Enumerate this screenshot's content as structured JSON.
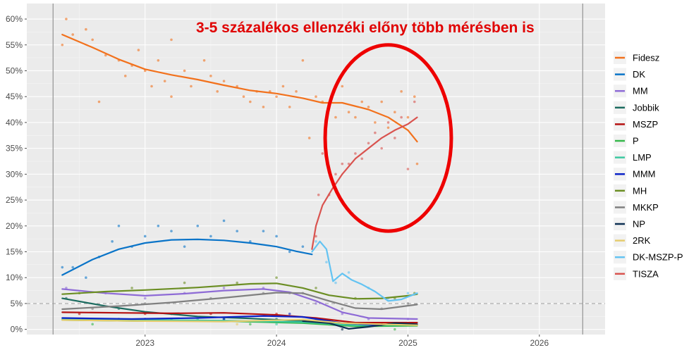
{
  "chart_data": {
    "type": "scatter",
    "title": "",
    "xlabel": "",
    "ylabel": "",
    "x_ticks": [
      "2023",
      "2024",
      "2025",
      "2026"
    ],
    "x_tick_years": [
      2023,
      2024,
      2025,
      2026
    ],
    "x_range": [
      2022.1,
      2026.5
    ],
    "y_ticks": [
      "0%",
      "5%",
      "10%",
      "15%",
      "20%",
      "25%",
      "30%",
      "35%",
      "40%",
      "45%",
      "50%",
      "55%",
      "60%"
    ],
    "y_tick_values": [
      0,
      5,
      10,
      15,
      20,
      25,
      30,
      35,
      40,
      45,
      50,
      55,
      60
    ],
    "ylim": [
      -1,
      63
    ],
    "grid": true,
    "legend_placement": "right",
    "reference_line": 5,
    "vertical_lines": [
      2022.3,
      2026.33
    ],
    "annotation": "3-5 százalékos ellenzéki előny több mérésben is",
    "highlight_ellipse": {
      "cx": 2024.85,
      "cy": 37,
      "rx": 0.48,
      "ry": 18
    },
    "series": [
      {
        "name": "Fidesz",
        "color": "#f2711c",
        "trend": [
          [
            2022.37,
            57
          ],
          [
            2022.6,
            54.5
          ],
          [
            2022.8,
            52.2
          ],
          [
            2023.0,
            50.3
          ],
          [
            2023.2,
            49.2
          ],
          [
            2023.4,
            48.3
          ],
          [
            2023.6,
            47.2
          ],
          [
            2023.8,
            46.2
          ],
          [
            2024.0,
            45.6
          ],
          [
            2024.2,
            44.7
          ],
          [
            2024.35,
            43.8
          ],
          [
            2024.5,
            43.8
          ],
          [
            2024.7,
            42.5
          ],
          [
            2024.85,
            41
          ],
          [
            2025.0,
            38.5
          ],
          [
            2025.07,
            36.3
          ]
        ],
        "points": [
          [
            2022.37,
            55
          ],
          [
            2022.4,
            60
          ],
          [
            2022.45,
            57
          ],
          [
            2022.55,
            58
          ],
          [
            2022.6,
            56
          ],
          [
            2022.65,
            44
          ],
          [
            2022.7,
            53
          ],
          [
            2022.8,
            52
          ],
          [
            2022.85,
            49
          ],
          [
            2022.9,
            51
          ],
          [
            2022.95,
            54
          ],
          [
            2023.0,
            50
          ],
          [
            2023.05,
            47
          ],
          [
            2023.1,
            52
          ],
          [
            2023.15,
            48
          ],
          [
            2023.2,
            56
          ],
          [
            2023.2,
            45
          ],
          [
            2023.3,
            50
          ],
          [
            2023.35,
            47
          ],
          [
            2023.45,
            52
          ],
          [
            2023.5,
            49
          ],
          [
            2023.55,
            46
          ],
          [
            2023.6,
            48
          ],
          [
            2023.7,
            47
          ],
          [
            2023.75,
            45
          ],
          [
            2023.8,
            44
          ],
          [
            2023.85,
            46
          ],
          [
            2023.9,
            43
          ],
          [
            2023.95,
            46
          ],
          [
            2024.0,
            45
          ],
          [
            2024.05,
            47
          ],
          [
            2024.1,
            43
          ],
          [
            2024.15,
            46
          ],
          [
            2024.2,
            52
          ],
          [
            2024.25,
            37
          ],
          [
            2024.3,
            45
          ],
          [
            2024.35,
            44
          ],
          [
            2024.4,
            43
          ],
          [
            2024.45,
            41
          ],
          [
            2024.5,
            47
          ],
          [
            2024.55,
            42
          ],
          [
            2024.6,
            41
          ],
          [
            2024.65,
            44
          ],
          [
            2024.7,
            43
          ],
          [
            2024.75,
            40
          ],
          [
            2024.8,
            44
          ],
          [
            2024.85,
            39
          ],
          [
            2024.9,
            42
          ],
          [
            2024.95,
            46
          ],
          [
            2025.0,
            41
          ],
          [
            2025.05,
            45
          ],
          [
            2025.07,
            32
          ]
        ]
      },
      {
        "name": "DK",
        "color": "#0a74c8",
        "trend": [
          [
            2022.37,
            10.5
          ],
          [
            2022.6,
            13.5
          ],
          [
            2022.8,
            15.5
          ],
          [
            2023.0,
            16.7
          ],
          [
            2023.2,
            17.3
          ],
          [
            2023.4,
            17.4
          ],
          [
            2023.6,
            17.2
          ],
          [
            2023.8,
            16.7
          ],
          [
            2024.0,
            16
          ],
          [
            2024.15,
            15.1
          ],
          [
            2024.27,
            14.5
          ]
        ],
        "points": [
          [
            2022.37,
            12
          ],
          [
            2022.45,
            12
          ],
          [
            2022.55,
            10
          ],
          [
            2022.65,
            14
          ],
          [
            2022.75,
            17
          ],
          [
            2022.8,
            20
          ],
          [
            2022.9,
            16
          ],
          [
            2023.0,
            18
          ],
          [
            2023.1,
            20
          ],
          [
            2023.2,
            19
          ],
          [
            2023.3,
            16
          ],
          [
            2023.4,
            20
          ],
          [
            2023.5,
            18
          ],
          [
            2023.6,
            21
          ],
          [
            2023.7,
            19
          ],
          [
            2023.8,
            17
          ],
          [
            2023.9,
            19
          ],
          [
            2024.0,
            18
          ],
          [
            2024.1,
            15
          ],
          [
            2024.2,
            16
          ]
        ]
      },
      {
        "name": "MM",
        "color": "#8e6bd6",
        "trend": [
          [
            2022.37,
            7.8
          ],
          [
            2022.7,
            7
          ],
          [
            2023.0,
            6.5
          ],
          [
            2023.3,
            6.9
          ],
          [
            2023.6,
            7.5
          ],
          [
            2023.9,
            7.8
          ],
          [
            2024.1,
            7.2
          ],
          [
            2024.3,
            5.5
          ],
          [
            2024.5,
            3.3
          ],
          [
            2024.7,
            2.2
          ],
          [
            2025.07,
            2
          ]
        ],
        "points": [
          [
            2022.4,
            8
          ],
          [
            2022.7,
            7
          ],
          [
            2023.0,
            6
          ],
          [
            2023.3,
            7
          ],
          [
            2023.6,
            8
          ],
          [
            2023.9,
            8
          ],
          [
            2024.1,
            7
          ],
          [
            2024.3,
            5
          ],
          [
            2024.5,
            3
          ],
          [
            2024.7,
            2
          ],
          [
            2025.0,
            2
          ]
        ]
      },
      {
        "name": "Jobbik",
        "color": "#1b6b5f",
        "trend": [
          [
            2022.37,
            6
          ],
          [
            2022.7,
            4.5
          ],
          [
            2023.0,
            3.4
          ],
          [
            2023.4,
            2.5
          ],
          [
            2023.8,
            2.1
          ],
          [
            2024.2,
            1.6
          ],
          [
            2024.6,
            1
          ],
          [
            2025.07,
            0.8
          ]
        ],
        "points": [
          [
            2022.4,
            6
          ],
          [
            2022.8,
            4
          ],
          [
            2023.2,
            3
          ],
          [
            2023.6,
            2
          ],
          [
            2024.0,
            2
          ],
          [
            2024.4,
            1
          ]
        ]
      },
      {
        "name": "MSZP",
        "color": "#b51010",
        "trend": [
          [
            2022.37,
            3.3
          ],
          [
            2022.8,
            3.2
          ],
          [
            2023.2,
            3.1
          ],
          [
            2023.6,
            3.2
          ],
          [
            2024.0,
            2.8
          ],
          [
            2024.3,
            2.2
          ],
          [
            2024.6,
            1.3
          ],
          [
            2025.07,
            1.3
          ]
        ],
        "points": [
          [
            2022.5,
            3
          ],
          [
            2023.0,
            3
          ],
          [
            2023.5,
            3
          ],
          [
            2024.0,
            3
          ],
          [
            2024.5,
            1
          ]
        ]
      },
      {
        "name": "P",
        "color": "#35b74a",
        "trend": [
          [
            2022.37,
            1.8
          ],
          [
            2023.0,
            1.6
          ],
          [
            2023.6,
            1.6
          ],
          [
            2024.2,
            1.2
          ],
          [
            2024.6,
            0.6
          ],
          [
            2025.07,
            0.7
          ]
        ],
        "points": [
          [
            2022.6,
            1
          ],
          [
            2023.2,
            2
          ],
          [
            2023.8,
            1
          ],
          [
            2024.4,
            1
          ],
          [
            2024.9,
            0
          ]
        ]
      },
      {
        "name": "LMP",
        "color": "#3cc8a0",
        "trend": [
          [
            2022.37,
            2
          ],
          [
            2023.0,
            1.8
          ],
          [
            2023.6,
            1.7
          ],
          [
            2024.2,
            1.4
          ],
          [
            2024.6,
            0.8
          ],
          [
            2025.07,
            0.9
          ]
        ],
        "points": [
          [
            2022.8,
            2
          ],
          [
            2023.4,
            2
          ],
          [
            2024.0,
            1
          ],
          [
            2024.7,
            1
          ]
        ]
      },
      {
        "name": "MMM",
        "color": "#0b22c8",
        "trend": [
          [
            2022.37,
            2.2
          ],
          [
            2022.9,
            2
          ],
          [
            2023.4,
            2.2
          ],
          [
            2023.9,
            2.6
          ],
          [
            2024.2,
            2.4
          ],
          [
            2024.5,
            1.2
          ],
          [
            2024.8,
            0.8
          ]
        ],
        "points": [
          [
            2023.0,
            2
          ],
          [
            2023.6,
            2
          ],
          [
            2024.1,
            3
          ]
        ]
      },
      {
        "name": "MH",
        "color": "#6b8e23",
        "trend": [
          [
            2022.37,
            6.8
          ],
          [
            2022.7,
            7.3
          ],
          [
            2023.0,
            7.6
          ],
          [
            2023.4,
            8.1
          ],
          [
            2023.8,
            8.8
          ],
          [
            2024.0,
            8.9
          ],
          [
            2024.2,
            8
          ],
          [
            2024.4,
            6.6
          ],
          [
            2024.6,
            5.9
          ],
          [
            2024.8,
            6
          ],
          [
            2025.0,
            6.5
          ],
          [
            2025.07,
            6.8
          ]
        ],
        "points": [
          [
            2022.5,
            7
          ],
          [
            2022.9,
            8
          ],
          [
            2023.3,
            9
          ],
          [
            2023.7,
            9
          ],
          [
            2024.0,
            10
          ],
          [
            2024.3,
            8
          ],
          [
            2024.6,
            6
          ],
          [
            2024.9,
            6
          ],
          [
            2025.05,
            7
          ]
        ]
      },
      {
        "name": "MKKP",
        "color": "#808080",
        "trend": [
          [
            2022.37,
            3.9
          ],
          [
            2022.8,
            4.5
          ],
          [
            2023.2,
            5.2
          ],
          [
            2023.6,
            6.1
          ],
          [
            2024.0,
            7.1
          ],
          [
            2024.2,
            7
          ],
          [
            2024.4,
            5.5
          ],
          [
            2024.6,
            4.1
          ],
          [
            2024.8,
            3.9
          ],
          [
            2025.07,
            4.8
          ]
        ],
        "points": [
          [
            2022.6,
            4
          ],
          [
            2023.0,
            5
          ],
          [
            2023.5,
            6
          ],
          [
            2023.9,
            7
          ],
          [
            2024.2,
            7
          ],
          [
            2024.5,
            4
          ],
          [
            2024.8,
            4
          ],
          [
            2025.0,
            5
          ]
        ]
      },
      {
        "name": "NP",
        "color": "#0d2f52",
        "trend": [
          [
            2024.2,
            1.6
          ],
          [
            2024.4,
            1.2
          ],
          [
            2024.55,
            0.1
          ],
          [
            2024.7,
            0.5
          ],
          [
            2024.9,
            1.2
          ],
          [
            2025.07,
            1
          ]
        ],
        "points": [
          [
            2024.3,
            2
          ],
          [
            2024.5,
            0
          ],
          [
            2024.8,
            1
          ]
        ]
      },
      {
        "name": "2RK",
        "color": "#e5cc6e",
        "trend": [
          [
            2022.37,
            1.8
          ],
          [
            2023.0,
            1.6
          ],
          [
            2023.6,
            1.5
          ],
          [
            2024.2,
            1.9
          ],
          [
            2024.5,
            1.2
          ],
          [
            2025.07,
            0.8
          ]
        ],
        "points": [
          [
            2023.1,
            2
          ],
          [
            2023.7,
            1
          ],
          [
            2024.3,
            2
          ]
        ]
      },
      {
        "name": "DK-MSZP-P",
        "color": "#63c3f2",
        "trend": [
          [
            2024.27,
            15
          ],
          [
            2024.33,
            17
          ],
          [
            2024.38,
            15.5
          ],
          [
            2024.43,
            9.3
          ],
          [
            2024.5,
            10.8
          ],
          [
            2024.57,
            9.6
          ],
          [
            2024.65,
            8.7
          ],
          [
            2024.75,
            7.3
          ],
          [
            2024.85,
            5.5
          ],
          [
            2024.95,
            5.8
          ],
          [
            2025.07,
            7
          ]
        ],
        "points": [
          [
            2024.3,
            17
          ],
          [
            2024.38,
            13
          ],
          [
            2024.45,
            9
          ],
          [
            2024.55,
            11
          ],
          [
            2024.7,
            8
          ],
          [
            2024.85,
            6
          ],
          [
            2025.0,
            7
          ]
        ]
      },
      {
        "name": "TISZA",
        "color": "#d9534f",
        "trend": [
          [
            2024.27,
            15.5
          ],
          [
            2024.3,
            20
          ],
          [
            2024.35,
            24
          ],
          [
            2024.42,
            27
          ],
          [
            2024.5,
            30
          ],
          [
            2024.6,
            33
          ],
          [
            2024.7,
            35
          ],
          [
            2024.8,
            37
          ],
          [
            2024.9,
            38.5
          ],
          [
            2025.0,
            39.7
          ],
          [
            2025.07,
            41
          ]
        ],
        "points": [
          [
            2024.3,
            18
          ],
          [
            2024.32,
            26
          ],
          [
            2024.35,
            34
          ],
          [
            2024.4,
            26
          ],
          [
            2024.45,
            30
          ],
          [
            2024.5,
            32
          ],
          [
            2024.55,
            32
          ],
          [
            2024.6,
            34
          ],
          [
            2024.65,
            33
          ],
          [
            2024.7,
            36
          ],
          [
            2024.75,
            38
          ],
          [
            2024.8,
            35
          ],
          [
            2024.85,
            40
          ],
          [
            2024.9,
            37
          ],
          [
            2024.95,
            41
          ],
          [
            2025.0,
            31
          ],
          [
            2025.05,
            44
          ]
        ]
      }
    ]
  }
}
